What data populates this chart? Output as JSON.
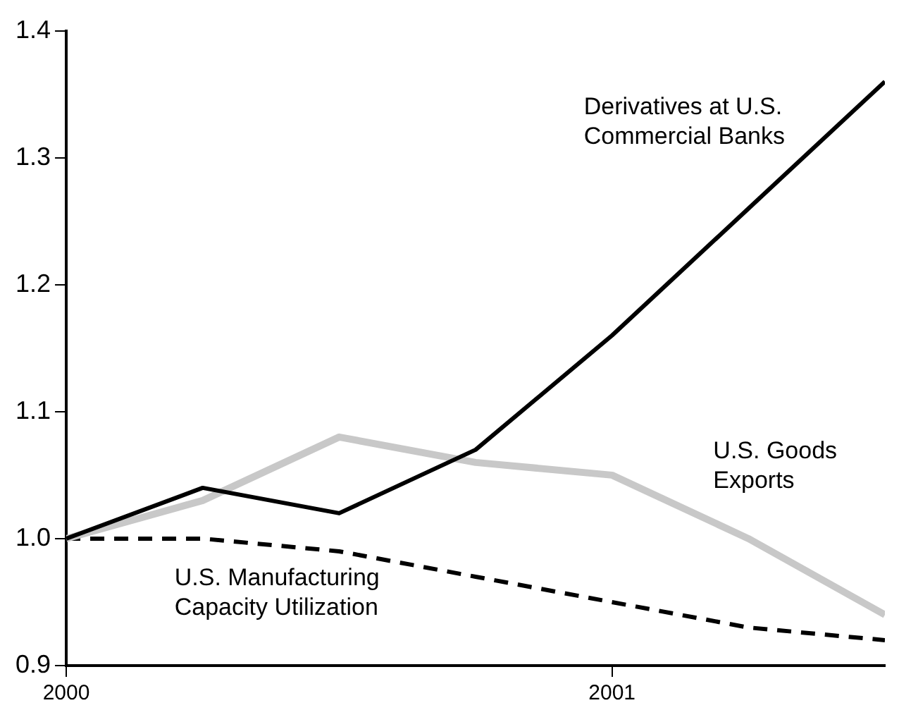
{
  "chart_data": {
    "type": "line",
    "x": [
      2000,
      2000.25,
      2000.5,
      2000.75,
      2001,
      2001.25,
      2001.5
    ],
    "series": [
      {
        "name": "Derivatives at U.S. Commercial Banks",
        "color": "#000000",
        "line_style": "solid",
        "values": [
          1.0,
          1.04,
          1.02,
          1.07,
          1.16,
          1.26,
          1.36
        ]
      },
      {
        "name": "U.S. Goods Exports",
        "color": "#c8c8c8",
        "line_style": "solid",
        "values": [
          1.0,
          1.03,
          1.08,
          1.06,
          1.05,
          1.0,
          0.94
        ]
      },
      {
        "name": "U.S. Manufacturing Capacity Utilization",
        "color": "#000000",
        "line_style": "dashed",
        "values": [
          1.0,
          1.0,
          0.99,
          0.97,
          0.95,
          0.93,
          0.92
        ]
      }
    ],
    "xlim": [
      2000,
      2001.5
    ],
    "xticks": [
      2000,
      2001
    ],
    "ylim": [
      0.9,
      1.4
    ],
    "yticks": [
      0.9,
      {
        "value": 1.0,
        "label": "1.0"
      },
      1.1,
      1.2,
      1.3,
      1.4
    ],
    "grid": false,
    "legend": false,
    "marker": "none"
  }
}
